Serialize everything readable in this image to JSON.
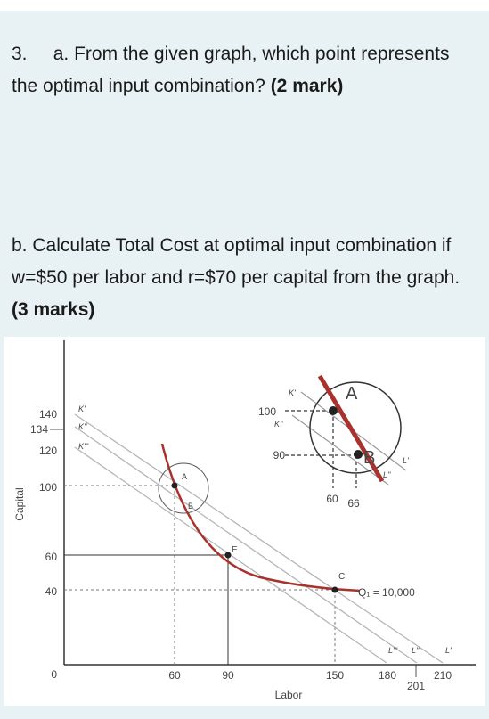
{
  "question_a": {
    "number": "3.",
    "letter": "a.",
    "text": "From the given graph, which point represents the optimal input combination?",
    "marks": "(2 mark)"
  },
  "question_b": {
    "letter": "b.",
    "text": "Calculate Total Cost at optimal input combination if w=$50 per labor and r=$70 per capital from the graph.",
    "marks": "(3 marks)"
  },
  "figure": {
    "y_axis_label": "Capital",
    "x_axis_label": "Labor",
    "y_ticks": [
      "140",
      "134",
      "120",
      "100",
      "60",
      "40",
      "0"
    ],
    "x_ticks": [
      "60",
      "90",
      "150",
      "180",
      "201",
      "210"
    ],
    "isocost_labels_left": [
      "K'",
      "K''",
      "K'''"
    ],
    "isocost_labels_bottom": [
      "L'''",
      "L''",
      "L'"
    ],
    "points": {
      "A": "A",
      "B": "B",
      "E": "E",
      "C": "C"
    },
    "isoquant_label": "Q₁ = 10,000",
    "inset": {
      "k_labels": [
        "K'",
        "K''"
      ],
      "y_ticks": [
        "100",
        "90"
      ],
      "x_ticks": [
        "60",
        "66"
      ],
      "l_labels": [
        "L'",
        "L''"
      ],
      "point_a": "A",
      "point_b": "B"
    },
    "colors": {
      "curve": "#a8322d",
      "isocost": "#b5b5b5",
      "axis": "#333333"
    }
  }
}
